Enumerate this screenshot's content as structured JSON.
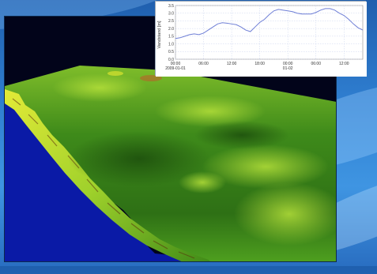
{
  "colors": {
    "water": "#0a1aa6",
    "terrain_dark": "#1f5a10",
    "terrain_mid": "#3c8a1c",
    "terrain_light": "#9ad12b",
    "terrain_highlight": "#dfe733",
    "series_line": "#6f7fd6",
    "grid": "#c9d3ee"
  },
  "terrain": {
    "type": "3d-surface-render",
    "icon": "terrain-surface"
  },
  "chart_data": {
    "type": "line",
    "ylabel": "Vandstand [m]",
    "ylim": [
      0.0,
      3.5
    ],
    "yticks": [
      "0.0",
      "0.5",
      "1.0",
      "1.5",
      "2.0",
      "2.5",
      "3.0",
      "3.5"
    ],
    "xlim_hours": [
      0,
      40
    ],
    "xticks": [
      {
        "h": 0,
        "label": "00:00",
        "sub": "2009-01-01"
      },
      {
        "h": 6,
        "label": "06:00",
        "sub": ""
      },
      {
        "h": 12,
        "label": "12:00",
        "sub": ""
      },
      {
        "h": 18,
        "label": "18:00",
        "sub": ""
      },
      {
        "h": 24,
        "label": "00:00",
        "sub": "01-02"
      },
      {
        "h": 30,
        "label": "06:00",
        "sub": ""
      },
      {
        "h": 36,
        "label": "12:00",
        "sub": ""
      }
    ],
    "grid": true,
    "series": [
      {
        "x_hours": [
          0,
          1,
          2,
          3,
          4,
          5,
          6,
          7,
          8,
          9,
          10,
          11,
          12,
          13,
          14,
          15,
          16,
          17,
          18,
          19,
          20,
          21,
          22,
          23,
          24,
          25,
          26,
          27,
          28,
          29,
          30,
          31,
          32,
          33,
          34,
          35,
          36,
          37,
          38,
          39,
          40
        ],
        "values": [
          1.35,
          1.4,
          1.5,
          1.6,
          1.65,
          1.6,
          1.7,
          1.9,
          2.1,
          2.3,
          2.38,
          2.35,
          2.3,
          2.25,
          2.1,
          1.9,
          1.8,
          2.1,
          2.4,
          2.6,
          2.9,
          3.15,
          3.25,
          3.2,
          3.15,
          3.1,
          3.0,
          2.95,
          2.95,
          2.95,
          3.05,
          3.2,
          3.3,
          3.3,
          3.2,
          3.0,
          2.85,
          2.6,
          2.3,
          2.05,
          1.9
        ]
      }
    ]
  }
}
